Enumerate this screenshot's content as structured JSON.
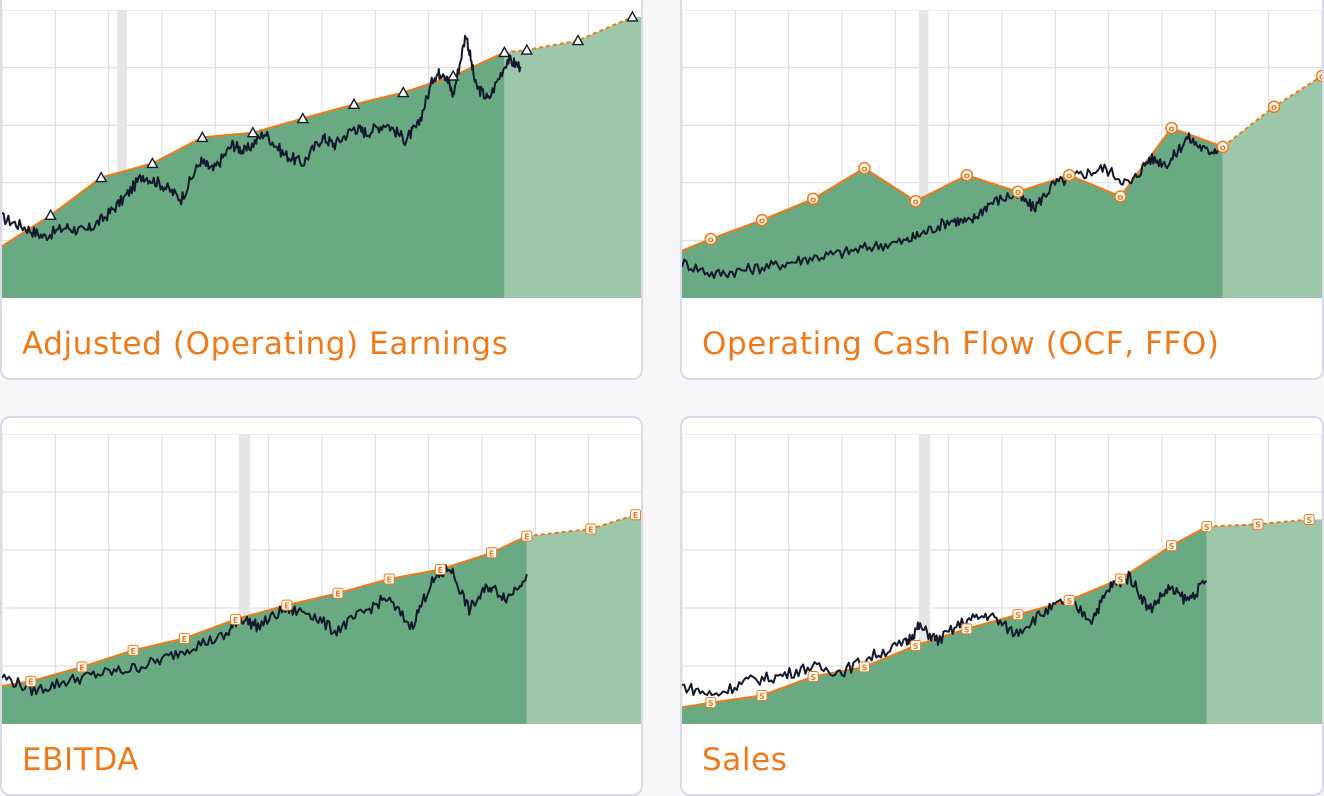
{
  "theme": {
    "accent": "#f07a1a",
    "area_fill": "#6aaa83",
    "forecast_fill": "#9ec7aa",
    "price_line": "#141a2e",
    "recession_band": "#e6e6e6",
    "grid": "#dcdcde",
    "card_border": "#dcdaea",
    "page_background": "#f6f6fb"
  },
  "cards": [
    {
      "title": "Adjusted (Operating) Earnings",
      "chart_data": {
        "type": "area",
        "marker_style": "triangle",
        "marker_letter": "",
        "x_range": [
          0,
          100
        ],
        "y_range": [
          0,
          100
        ],
        "recession_band_x": [
          18,
          19.5
        ],
        "forecast_start_x": 82,
        "fundamental": [
          [
            0,
            22
          ],
          [
            7.6,
            35
          ],
          [
            15.5,
            51
          ],
          [
            23.5,
            57
          ],
          [
            31.3,
            68
          ],
          [
            39.2,
            70
          ],
          [
            47,
            76
          ],
          [
            55,
            82
          ],
          [
            62.7,
            87
          ],
          [
            70.5,
            94
          ],
          [
            78.5,
            104
          ]
        ],
        "forecast": [
          [
            78.5,
            104
          ],
          [
            82,
            105
          ],
          [
            90,
            109
          ],
          [
            98.5,
            119
          ]
        ],
        "price": [
          [
            0,
            34
          ],
          [
            3.5,
            30
          ],
          [
            6.5,
            26
          ],
          [
            10,
            30
          ],
          [
            13,
            28
          ],
          [
            16,
            34
          ],
          [
            19,
            42
          ],
          [
            22,
            52
          ],
          [
            25,
            48
          ],
          [
            28,
            42
          ],
          [
            31,
            58
          ],
          [
            33,
            54
          ],
          [
            36,
            65
          ],
          [
            38,
            62
          ],
          [
            41,
            70
          ],
          [
            44,
            61
          ],
          [
            47,
            57
          ],
          [
            50,
            68
          ],
          [
            52,
            65
          ],
          [
            55,
            72
          ],
          [
            57,
            70
          ],
          [
            60,
            74
          ],
          [
            63,
            67
          ],
          [
            65,
            73
          ],
          [
            67.5,
            94
          ],
          [
            69,
            96
          ],
          [
            70.5,
            86
          ],
          [
            72.5,
            112
          ],
          [
            74,
            90
          ],
          [
            76,
            84
          ],
          [
            79,
            101
          ],
          [
            81,
            98
          ]
        ]
      }
    },
    {
      "title": "Operating Cash Flow (OCF, FFO)",
      "chart_data": {
        "type": "area",
        "marker_style": "circle",
        "marker_letter": "o",
        "x_range": [
          0,
          100
        ],
        "y_range": [
          0,
          100
        ],
        "recession_band_x": [
          37,
          38.5
        ],
        "forecast_start_x": 82,
        "fundamental": [
          [
            0,
            20
          ],
          [
            4.5,
            25
          ],
          [
            12.5,
            33
          ],
          [
            20.5,
            42
          ],
          [
            28.5,
            55
          ],
          [
            36.5,
            41
          ],
          [
            44.5,
            52
          ],
          [
            52.5,
            45
          ],
          [
            60.5,
            52
          ],
          [
            68.5,
            43
          ],
          [
            76.5,
            72
          ],
          [
            84.5,
            64
          ]
        ],
        "forecast": [
          [
            84.5,
            64
          ],
          [
            92.5,
            81
          ],
          [
            100,
            94
          ]
        ],
        "price": [
          [
            0,
            15
          ],
          [
            5,
            10
          ],
          [
            10,
            12
          ],
          [
            15,
            14
          ],
          [
            20,
            17
          ],
          [
            25,
            19
          ],
          [
            30,
            22
          ],
          [
            35,
            24
          ],
          [
            38,
            28
          ],
          [
            42,
            33
          ],
          [
            45,
            32
          ],
          [
            48,
            40
          ],
          [
            52,
            44
          ],
          [
            55,
            38
          ],
          [
            58,
            48
          ],
          [
            62,
            52
          ],
          [
            66,
            55
          ],
          [
            70,
            48
          ],
          [
            73,
            59
          ],
          [
            76,
            57
          ],
          [
            79,
            68
          ],
          [
            82,
            62
          ],
          [
            84.5,
            64
          ]
        ]
      }
    },
    {
      "title": "EBITDA",
      "chart_data": {
        "type": "area",
        "marker_style": "square",
        "marker_letter": "E",
        "x_range": [
          0,
          100
        ],
        "y_range": [
          0,
          100
        ],
        "recession_band_x": [
          37,
          38.8
        ],
        "forecast_start_x": 82,
        "fundamental": [
          [
            0,
            16
          ],
          [
            4.5,
            18
          ],
          [
            12.5,
            24
          ],
          [
            20.5,
            31
          ],
          [
            28.5,
            36
          ],
          [
            36.5,
            44
          ],
          [
            44.5,
            50
          ],
          [
            52.5,
            55
          ],
          [
            60.5,
            61
          ],
          [
            68.5,
            65
          ],
          [
            76.5,
            72
          ],
          [
            82,
            79
          ]
        ],
        "forecast": [
          [
            82,
            79
          ],
          [
            92,
            82
          ],
          [
            99,
            88
          ]
        ],
        "price": [
          [
            0,
            20
          ],
          [
            5,
            14
          ],
          [
            10,
            18
          ],
          [
            15,
            21
          ],
          [
            20,
            23
          ],
          [
            25,
            27
          ],
          [
            30,
            33
          ],
          [
            35,
            37
          ],
          [
            37,
            45
          ],
          [
            40,
            41
          ],
          [
            44,
            48
          ],
          [
            48,
            47
          ],
          [
            52,
            39
          ],
          [
            56,
            46
          ],
          [
            60,
            53
          ],
          [
            64,
            41
          ],
          [
            67,
            59
          ],
          [
            70,
            66
          ],
          [
            73,
            48
          ],
          [
            76,
            58
          ],
          [
            79,
            53
          ],
          [
            82,
            63
          ]
        ]
      }
    },
    {
      "title": "Sales",
      "chart_data": {
        "type": "area",
        "marker_style": "square",
        "marker_letter": "S",
        "x_range": [
          0,
          100
        ],
        "y_range": [
          0,
          100
        ],
        "recession_band_x": [
          37,
          38.8
        ],
        "forecast_start_x": 82,
        "fundamental": [
          [
            0,
            7
          ],
          [
            4.5,
            9
          ],
          [
            12.5,
            12
          ],
          [
            20.5,
            20
          ],
          [
            28.5,
            24
          ],
          [
            36.5,
            33
          ],
          [
            44.5,
            40
          ],
          [
            52.5,
            46
          ],
          [
            60.5,
            52
          ],
          [
            68.5,
            61
          ],
          [
            76.5,
            75
          ],
          [
            82,
            83
          ]
        ],
        "forecast": [
          [
            82,
            83
          ],
          [
            90,
            84
          ],
          [
            98,
            86
          ]
        ],
        "price": [
          [
            0,
            16
          ],
          [
            5,
            12
          ],
          [
            10,
            18
          ],
          [
            15,
            20
          ],
          [
            20,
            24
          ],
          [
            25,
            22
          ],
          [
            30,
            29
          ],
          [
            35,
            34
          ],
          [
            37,
            41
          ],
          [
            40,
            35
          ],
          [
            44,
            43
          ],
          [
            48,
            46
          ],
          [
            52,
            38
          ],
          [
            56,
            46
          ],
          [
            60,
            52
          ],
          [
            64,
            44
          ],
          [
            67,
            58
          ],
          [
            70,
            62
          ],
          [
            73,
            48
          ],
          [
            76,
            57
          ],
          [
            79,
            52
          ],
          [
            82,
            60
          ]
        ]
      }
    }
  ]
}
